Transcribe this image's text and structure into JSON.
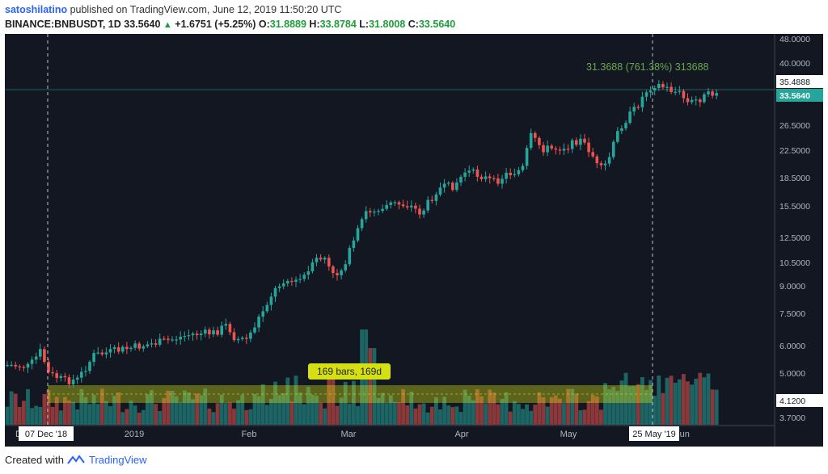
{
  "header": {
    "author": "satoshilatino",
    "published": "published on TradingView.com, June 12, 2019 11:50:20 UTC",
    "symbol": "BINANCE:BNBUSDT, 1D",
    "last": "33.5640",
    "change": "+1.6751 (+5.25%)",
    "o_label": "O:",
    "o": "31.8889",
    "h_label": "H:",
    "h": "33.8784",
    "l_label": "L:",
    "l": "31.8008",
    "c_label": "C:",
    "c": "33.5640"
  },
  "chart": {
    "price_axis": [
      "48.0000",
      "40.0000",
      "35.4888",
      "33.5640",
      "26.5000",
      "22.5000",
      "18.5000",
      "15.5000",
      "12.5000",
      "10.5000",
      "9.0000",
      "7.5000",
      "6.0000",
      "5.0000",
      "4.1200",
      "3.7000"
    ],
    "price_label_hi": "35.4888",
    "price_label_last": "33.5640",
    "price_label_lo": "4.1200",
    "time_axis": [
      "2019",
      "Feb",
      "Mar",
      "Apr",
      "May",
      "Jun"
    ],
    "start_date_label": "07 Dec '18",
    "end_date_label": "25 May '19",
    "measure_label": "31.3688 (761.38%) 313688",
    "range_label": "169 bars, 169d",
    "colors": {
      "up": "#26a69a",
      "down": "#ef5350",
      "background": "#131722",
      "measure": "#6aa84f",
      "range": "#d4e012"
    }
  },
  "footer": {
    "created_with": "Created with",
    "brand": "TradingView",
    "logo_icon": "tradingview-logo-icon"
  }
}
